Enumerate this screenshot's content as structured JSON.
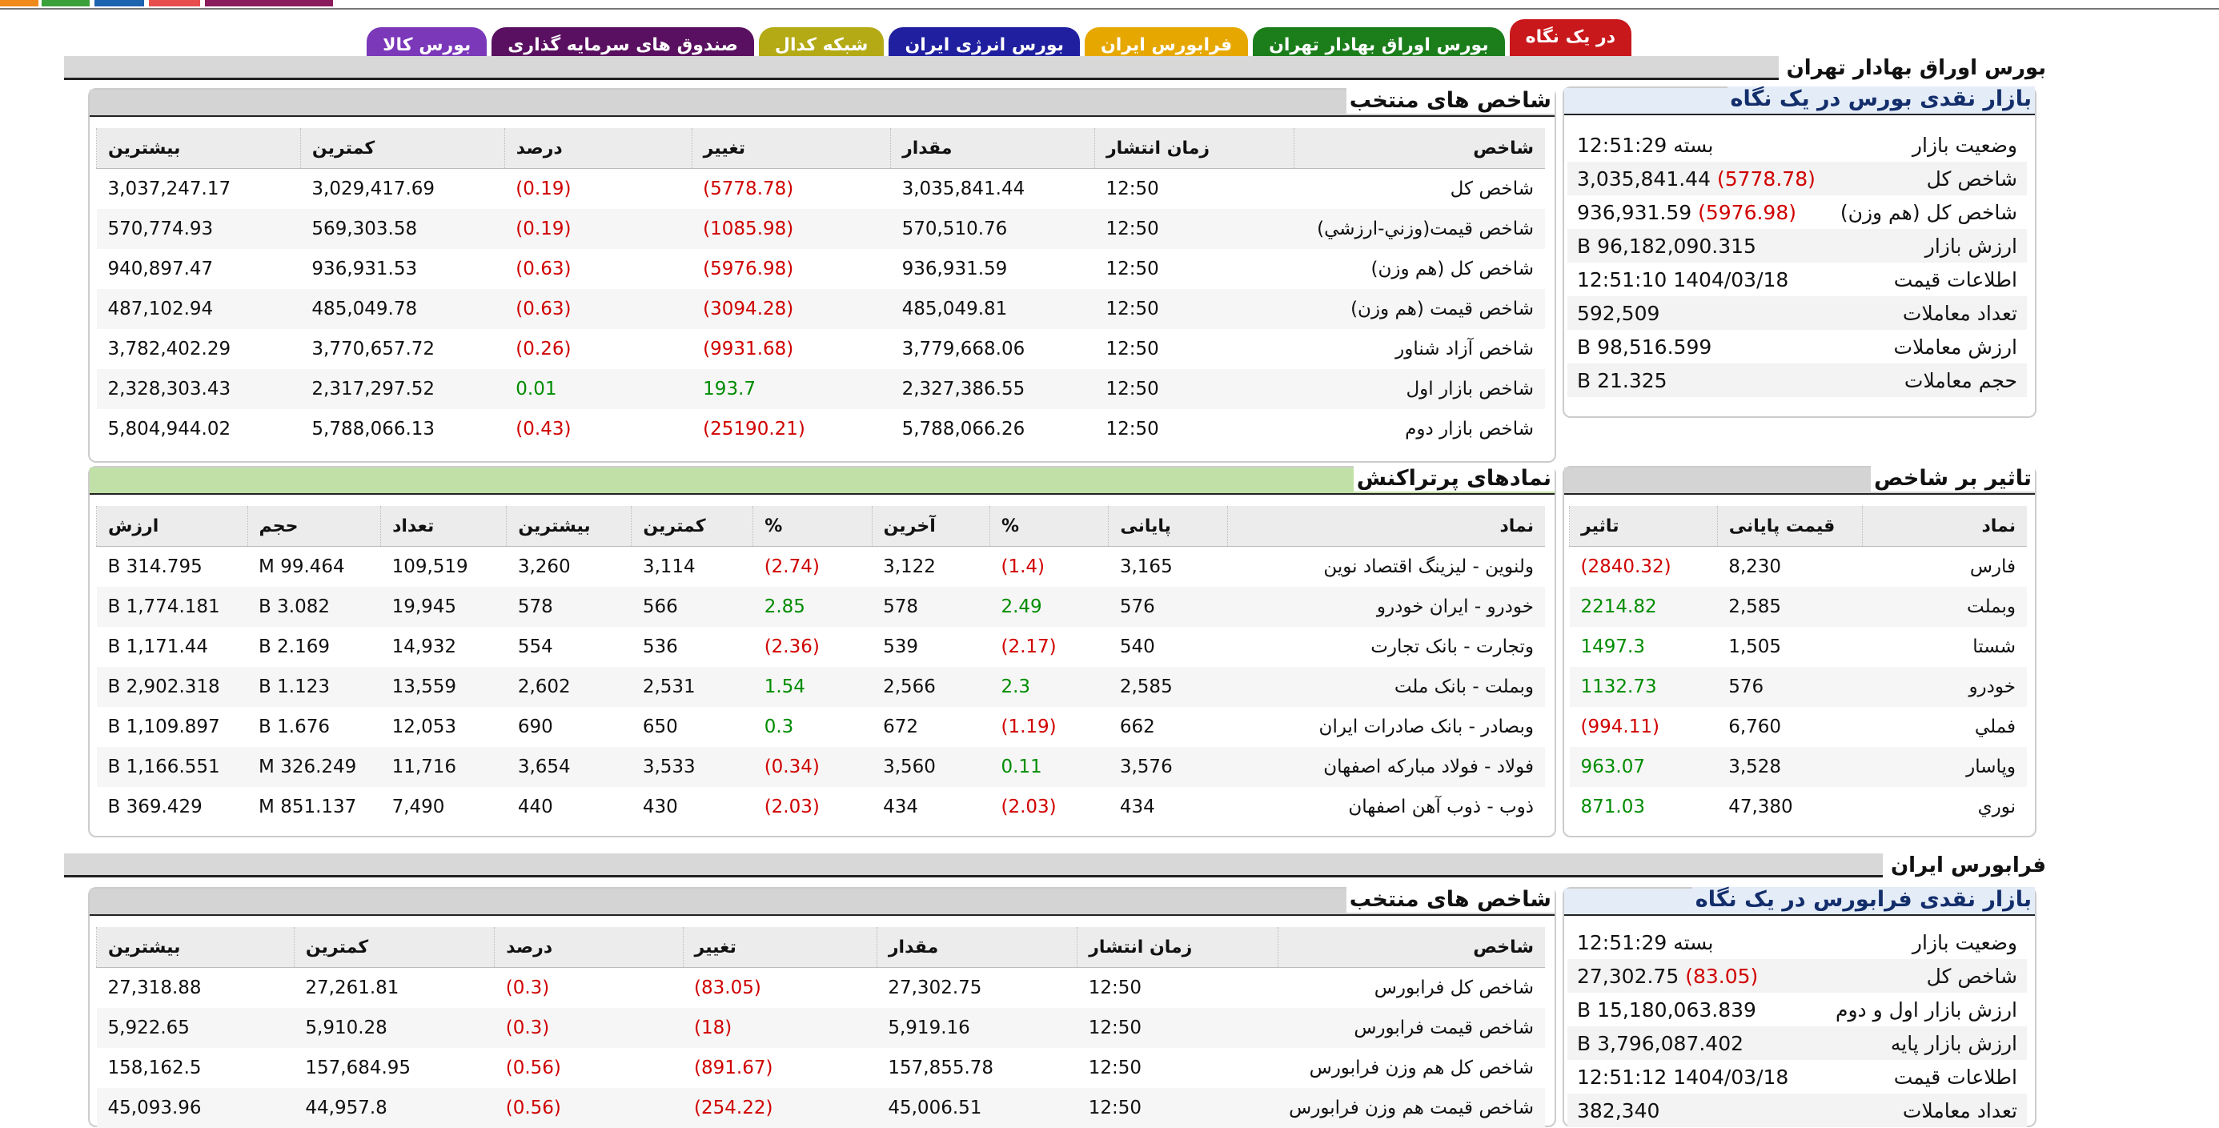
{
  "tabs": [
    {
      "label": "در یک نگاه",
      "color": "#c8181c",
      "active": true
    },
    {
      "label": "بورس اوراق بهادار تهران",
      "color": "#1b7e1b"
    },
    {
      "label": "فرابورس ایران",
      "color": "#e6a800"
    },
    {
      "label": "بورس انرژی ایران",
      "color": "#1f1fa0"
    },
    {
      "label": "شبکه کدال",
      "color": "#b3aa16"
    },
    {
      "label": "صندوق های سرمایه گذاری",
      "color": "#5a1060"
    },
    {
      "label": "بورس کالا",
      "color": "#7b38b9"
    }
  ],
  "sections": {
    "tse": "بورس اوراق بهادار تهران",
    "ifb": "فرابورس ایران"
  },
  "tse": {
    "summary": {
      "title": "بازار نقدی بورس در یک نگاه",
      "rows": [
        {
          "label": "وضعیت بازار",
          "value": "بسته 12:51:29"
        },
        {
          "label": "شاخص کل",
          "value": "3,035,841.44",
          "change": "(5778.78)"
        },
        {
          "label": "شاخص کل (هم وزن)",
          "value": "936,931.59",
          "change": "(5976.98)"
        },
        {
          "label": "ارزش بازار",
          "value": "96,182,090.315 B"
        },
        {
          "label": "اطلاعات قیمت",
          "value": "1404/03/18 12:51:10"
        },
        {
          "label": "تعداد معاملات",
          "value": "592,509"
        },
        {
          "label": "ارزش معاملات",
          "value": "98,516.599 B"
        },
        {
          "label": "حجم معاملات",
          "value": "21.325 B"
        }
      ]
    },
    "indices": {
      "title": "شاخص های منتخب",
      "headers": [
        "شاخص",
        "زمان انتشار",
        "مقدار",
        "تغییر",
        "درصد",
        "کمترین",
        "بیشترین"
      ],
      "rows": [
        [
          "شاخص کل",
          "12:50",
          "3,035,841.44",
          "(5778.78)",
          "(0.19)",
          "3,029,417.69",
          "3,037,247.17"
        ],
        [
          "شاخص قیمت(وزني-ارزشي)",
          "12:50",
          "570,510.76",
          "(1085.98)",
          "(0.19)",
          "569,303.58",
          "570,774.93"
        ],
        [
          "شاخص کل (هم وزن)",
          "12:50",
          "936,931.59",
          "(5976.98)",
          "(0.63)",
          "936,931.53",
          "940,897.47"
        ],
        [
          "شاخص قیمت (هم وزن)",
          "12:50",
          "485,049.81",
          "(3094.28)",
          "(0.63)",
          "485,049.78",
          "487,102.94"
        ],
        [
          "شاخص آزاد شناور",
          "12:50",
          "3,779,668.06",
          "(9931.68)",
          "(0.26)",
          "3,770,657.72",
          "3,782,402.29"
        ],
        [
          "شاخص بازار اول",
          "12:50",
          "2,327,386.55",
          "193.7",
          "0.01",
          "2,317,297.52",
          "2,328,303.43"
        ],
        [
          "شاخص بازار دوم",
          "12:50",
          "5,788,066.26",
          "(25190.21)",
          "(0.43)",
          "5,788,066.13",
          "5,804,944.02"
        ]
      ]
    },
    "impact": {
      "title": "تاثیر بر شاخص",
      "headers": [
        "نماد",
        "قیمت پایانی",
        "تاثیر"
      ],
      "rows": [
        [
          "فارس",
          "8,230",
          "(2840.32)"
        ],
        [
          "وبملت",
          "2,585",
          "2214.82"
        ],
        [
          "شستا",
          "1,505",
          "1497.3"
        ],
        [
          "خودرو",
          "576",
          "1132.73"
        ],
        [
          "فملي",
          "6,760",
          "(994.11)"
        ],
        [
          "وپاسار",
          "3,528",
          "963.07"
        ],
        [
          "نوري",
          "47,380",
          "871.03"
        ]
      ]
    },
    "active": {
      "title": "نمادهای پرتراکنش",
      "headers": [
        "نماد",
        "پایانی",
        "%",
        "آخرین",
        "%",
        "کمترین",
        "بیشترین",
        "تعداد",
        "حجم",
        "ارزش"
      ],
      "rows": [
        [
          "ولنوین - لیزینگ اقتصاد نوین",
          "3,165",
          "(1.4)",
          "3,122",
          "(2.74)",
          "3,114",
          "3,260",
          "109,519",
          "99.464 M",
          "314.795 B"
        ],
        [
          "خودرو - ایران خودرو",
          "576",
          "2.49",
          "578",
          "2.85",
          "566",
          "578",
          "19,945",
          "3.082 B",
          "1,774.181 B"
        ],
        [
          "وتجارت - بانک تجارت",
          "540",
          "(2.17)",
          "539",
          "(2.36)",
          "536",
          "554",
          "14,932",
          "2.169 B",
          "1,171.44 B"
        ],
        [
          "وبملت - بانک ملت",
          "2,585",
          "2.3",
          "2,566",
          "1.54",
          "2,531",
          "2,602",
          "13,559",
          "1.123 B",
          "2,902.318 B"
        ],
        [
          "وبصادر - بانک صادرات ایران",
          "662",
          "(1.19)",
          "672",
          "0.3",
          "650",
          "690",
          "12,053",
          "1.676 B",
          "1,109.897 B"
        ],
        [
          "فولاد - فولاد مبارکه اصفهان",
          "3,576",
          "0.11",
          "3,560",
          "(0.34)",
          "3,533",
          "3,654",
          "11,716",
          "326.249 M",
          "1,166.551 B"
        ],
        [
          "ذوب - ذوب آهن اصفهان",
          "434",
          "(2.03)",
          "434",
          "(2.03)",
          "430",
          "440",
          "7,490",
          "851.137 M",
          "369.429 B"
        ]
      ]
    }
  },
  "ifb": {
    "summary": {
      "title": "بازار نقدی فرابورس در یک نگاه",
      "rows": [
        {
          "label": "وضعیت بازار",
          "value": "بسته 12:51:29"
        },
        {
          "label": "شاخص کل",
          "value": "27,302.75",
          "change": "(83.05)"
        },
        {
          "label": "ارزش بازار اول و دوم",
          "value": "15,180,063.839 B"
        },
        {
          "label": "ارزش بازار پایه",
          "value": "3,796,087.402 B"
        },
        {
          "label": "اطلاعات قیمت",
          "value": "1404/03/18 12:51:12"
        },
        {
          "label": "تعداد معاملات",
          "value": "382,340"
        }
      ]
    },
    "indices": {
      "title": "شاخص های منتخب",
      "headers": [
        "شاخص",
        "زمان انتشار",
        "مقدار",
        "تغییر",
        "درصد",
        "کمترین",
        "بیشترین"
      ],
      "rows": [
        [
          "شاخص کل فرابورس",
          "12:50",
          "27,302.75",
          "(83.05)",
          "(0.3)",
          "27,261.81",
          "27,318.88"
        ],
        [
          "شاخص قیمت فرابورس",
          "12:50",
          "5,919.16",
          "(18)",
          "(0.3)",
          "5,910.28",
          "5,922.65"
        ],
        [
          "شاخص کل هم وزن فرابورس",
          "12:50",
          "157,855.78",
          "(891.67)",
          "(0.56)",
          "157,684.95",
          "158,162.5"
        ],
        [
          "شاخص قیمت هم وزن فرابورس",
          "12:50",
          "45,006.51",
          "(254.22)",
          "(0.56)",
          "44,957.8",
          "45,093.96"
        ]
      ]
    }
  }
}
